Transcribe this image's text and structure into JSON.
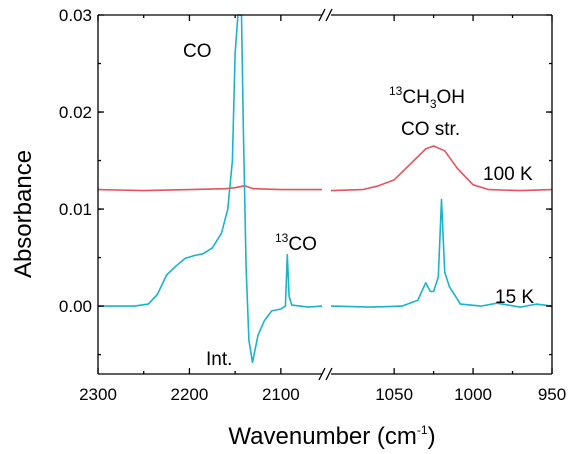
{
  "chart_data": {
    "type": "line",
    "xlabel": "Wavenumber (cm",
    "xlabel_sup": "-1",
    "xlabel_close": ")",
    "ylabel": "Absorbance",
    "ylim": [
      -0.007,
      0.03
    ],
    "x_scale": "broken",
    "x_segments": [
      {
        "range": [
          2300,
          2055
        ],
        "ticks": [
          2300,
          2200,
          2100
        ],
        "tick_labels": [
          "2300",
          "2200",
          "2100"
        ]
      },
      {
        "range": [
          1090,
          950
        ],
        "ticks": [
          1050,
          1000,
          950
        ],
        "tick_labels": [
          "1050",
          "1000",
          "950"
        ]
      }
    ],
    "y_ticks": [
      0.0,
      0.01,
      0.02,
      0.03
    ],
    "y_tick_labels": [
      "0.00",
      "0.01",
      "0.02",
      "0.03"
    ],
    "grid": false,
    "legend": "none",
    "series": [
      {
        "name": "100 K",
        "color": "#e8525a",
        "segments": [
          [
            [
              2300,
              0.012
            ],
            [
              2250,
              0.0119
            ],
            [
              2200,
              0.012
            ],
            [
              2160,
              0.0121
            ],
            [
              2150,
              0.0122
            ],
            [
              2140,
              0.0124
            ],
            [
              2130,
              0.0121
            ],
            [
              2100,
              0.012
            ],
            [
              2070,
              0.012
            ],
            [
              2055,
              0.012
            ]
          ],
          [
            [
              1090,
              0.0119
            ],
            [
              1070,
              0.012
            ],
            [
              1060,
              0.0124
            ],
            [
              1050,
              0.013
            ],
            [
              1040,
              0.0146
            ],
            [
              1030,
              0.0162
            ],
            [
              1025,
              0.0165
            ],
            [
              1018,
              0.016
            ],
            [
              1010,
              0.0142
            ],
            [
              1000,
              0.0125
            ],
            [
              990,
              0.012
            ],
            [
              970,
              0.0119
            ],
            [
              950,
              0.012
            ]
          ]
        ]
      },
      {
        "name": "15 K",
        "color": "#1ab3cc",
        "segments": [
          [
            [
              2300,
              0.0
            ],
            [
              2260,
              0.0
            ],
            [
              2245,
              0.0002
            ],
            [
              2235,
              0.0012
            ],
            [
              2225,
              0.0032
            ],
            [
              2215,
              0.0041
            ],
            [
              2205,
              0.0049
            ],
            [
              2195,
              0.0052
            ],
            [
              2185,
              0.0054
            ],
            [
              2175,
              0.006
            ],
            [
              2165,
              0.0075
            ],
            [
              2158,
              0.01
            ],
            [
              2153,
              0.015
            ],
            [
              2150,
              0.026
            ],
            [
              2147,
              0.03
            ],
            [
              2143,
              0.03
            ],
            [
              2141,
              0.018
            ],
            [
              2138,
              0.004
            ],
            [
              2135,
              -0.0035
            ],
            [
              2131,
              -0.0058
            ],
            [
              2125,
              -0.003
            ],
            [
              2118,
              -0.0015
            ],
            [
              2110,
              -0.0005
            ],
            [
              2100,
              -0.0003
            ],
            [
              2095,
              0.0
            ],
            [
              2093,
              0.0053
            ],
            [
              2091,
              0.001
            ],
            [
              2088,
              0.0001
            ],
            [
              2070,
              -0.0001
            ],
            [
              2055,
              0.0
            ]
          ],
          [
            [
              1090,
              0.0
            ],
            [
              1065,
              -0.0001
            ],
            [
              1045,
              0.0
            ],
            [
              1035,
              0.0006
            ],
            [
              1030,
              0.0024
            ],
            [
              1027,
              0.0015
            ],
            [
              1025,
              0.0015
            ],
            [
              1022,
              0.003
            ],
            [
              1020,
              0.011
            ],
            [
              1018,
              0.0035
            ],
            [
              1015,
              0.002
            ],
            [
              1008,
              0.0002
            ],
            [
              995,
              0.0
            ],
            [
              985,
              0.0003
            ],
            [
              970,
              -0.0001
            ],
            [
              960,
              0.0002
            ],
            [
              950,
              0.0
            ]
          ]
        ]
      }
    ],
    "annotations": {
      "co": "CO",
      "int": "Int.",
      "co13_sup": "13",
      "co13_base": "CO",
      "ch3oh_sup": "13",
      "ch3oh_a": "CH",
      "ch3oh_sub": "3",
      "ch3oh_b": "OH",
      "co_str": "CO str.",
      "label_100k": "100 K",
      "label_15k": "15 K"
    },
    "break_mark": "//"
  }
}
